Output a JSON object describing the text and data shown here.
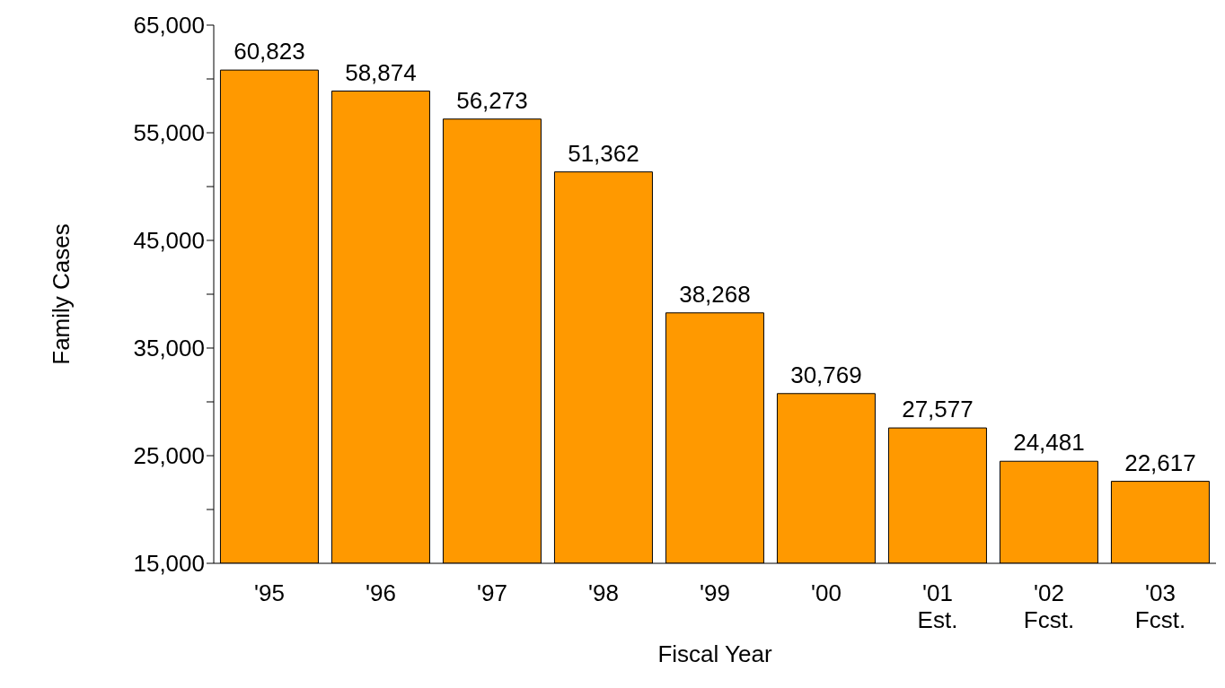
{
  "chart_data": {
    "type": "bar",
    "xlabel": "Fiscal Year",
    "ylabel": "Family Cases",
    "categories": [
      "'95",
      "'96",
      "'97",
      "'98",
      "'99",
      "'00",
      "'01\nEst.",
      "'02\nFcst.",
      "'03\nFcst."
    ],
    "values": [
      60823,
      58874,
      56273,
      51362,
      38268,
      30769,
      27577,
      24481,
      22617
    ],
    "value_labels": [
      "60,823",
      "58,874",
      "56,273",
      "51,362",
      "38,268",
      "30,769",
      "27,577",
      "24,481",
      "22,617"
    ],
    "color": "#ff9900",
    "ylim": [
      15000,
      65000
    ],
    "yticks": [
      {
        "value": 15000,
        "label": "15,000"
      },
      {
        "value": 20000,
        "label": null
      },
      {
        "value": 25000,
        "label": "25,000"
      },
      {
        "value": 30000,
        "label": null
      },
      {
        "value": 35000,
        "label": "35,000"
      },
      {
        "value": 40000,
        "label": null
      },
      {
        "value": 45000,
        "label": "45,000"
      },
      {
        "value": 50000,
        "label": null
      },
      {
        "value": 55000,
        "label": "55,000"
      },
      {
        "value": 60000,
        "label": null
      },
      {
        "value": 65000,
        "label": "65,000"
      }
    ],
    "grid": false,
    "legend": false
  }
}
